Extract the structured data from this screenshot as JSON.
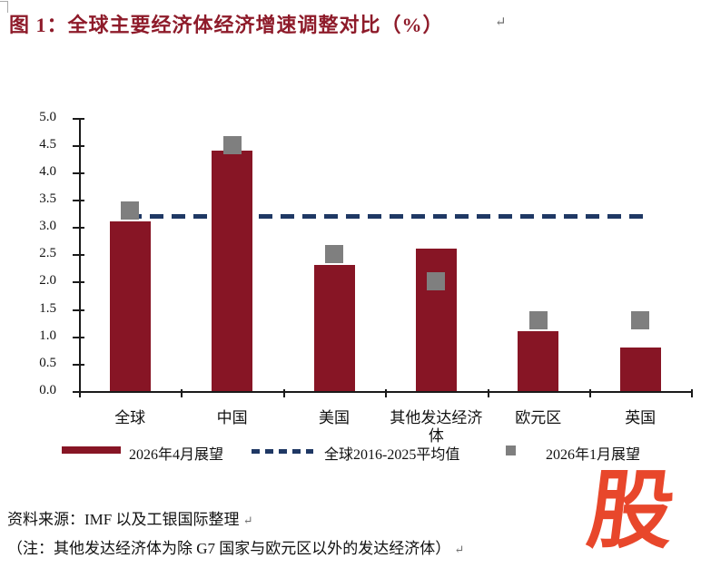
{
  "title": {
    "text": "图 1：全球主要经济体经济增速调整对比（%）",
    "paragraph_mark": "↵",
    "color": "#8E1B2A"
  },
  "chart_data": {
    "type": "bar",
    "categories": [
      "全球",
      "中国",
      "美国",
      "其他发达经济体",
      "欧元区",
      "英国"
    ],
    "series": [
      {
        "name": "2026年4月展望",
        "type": "bar",
        "values": [
          3.1,
          4.4,
          2.3,
          2.6,
          1.1,
          0.8
        ]
      },
      {
        "name": "2026年1月展望",
        "type": "square-marker",
        "values": [
          3.3,
          4.5,
          2.5,
          2.0,
          1.3,
          1.3
        ]
      },
      {
        "name": "全球2016-2025平均值",
        "type": "dashed-line",
        "value": 3.2
      }
    ],
    "ylim": [
      0,
      5
    ],
    "ytick_step": 0.5,
    "grid": false,
    "legend_position": "bottom",
    "colors": {
      "bar": "#871525",
      "marker": "#7F7F7F",
      "average_line": "#1F3864",
      "axis": "#1a1a1a"
    }
  },
  "footer": {
    "source": "资料来源：IMF 以及工银国际整理",
    "source_paragraph_mark": "↵",
    "note": "（注：其他发达经济体为除 G7 国家与欧元区以外的发达经济体）",
    "note_paragraph_mark": "↵"
  },
  "logo": {
    "text": "股",
    "color": "#E8472B"
  }
}
